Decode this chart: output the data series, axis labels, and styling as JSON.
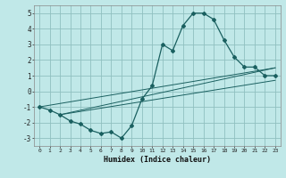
{
  "title": "",
  "xlabel": "Humidex (Indice chaleur)",
  "bg_color": "#c0e8e8",
  "grid_color": "#90c0c0",
  "line_color": "#1a6060",
  "xlim": [
    -0.5,
    23.5
  ],
  "ylim": [
    -3.5,
    5.5
  ],
  "yticks": [
    -3,
    -2,
    -1,
    0,
    1,
    2,
    3,
    4,
    5
  ],
  "series": [
    [
      0,
      -1.0
    ],
    [
      1,
      -1.2
    ],
    [
      2,
      -1.5
    ],
    [
      3,
      -1.9
    ],
    [
      4,
      -2.1
    ],
    [
      5,
      -2.5
    ],
    [
      6,
      -2.7
    ],
    [
      7,
      -2.6
    ],
    [
      8,
      -3.0
    ],
    [
      9,
      -2.2
    ],
    [
      10,
      -0.5
    ],
    [
      11,
      0.35
    ],
    [
      12,
      3.0
    ],
    [
      13,
      2.6
    ],
    [
      14,
      4.2
    ],
    [
      15,
      5.0
    ],
    [
      16,
      5.0
    ],
    [
      17,
      4.6
    ],
    [
      18,
      3.3
    ],
    [
      19,
      2.2
    ],
    [
      20,
      1.55
    ],
    [
      21,
      1.55
    ],
    [
      22,
      1.0
    ],
    [
      23,
      1.0
    ]
  ],
  "line2": [
    [
      0,
      -1.0
    ],
    [
      23,
      1.5
    ]
  ],
  "line3": [
    [
      2,
      -1.5
    ],
    [
      23,
      1.5
    ]
  ],
  "line4": [
    [
      2,
      -1.5
    ],
    [
      23,
      0.7
    ]
  ]
}
